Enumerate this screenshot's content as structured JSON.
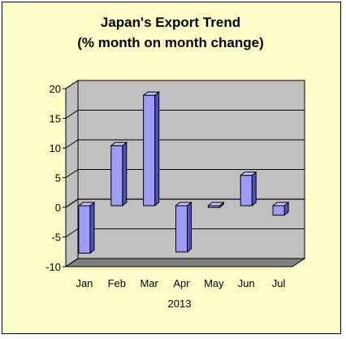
{
  "chart_data": {
    "type": "bar",
    "title": "Japan's Export Trend",
    "subtitle": "(% month on month change)",
    "xlabel": "2013",
    "ylabel": "",
    "categories": [
      "Jan",
      "Feb",
      "Mar",
      "Apr",
      "May",
      "Jun",
      "Jul"
    ],
    "values": [
      -8.0,
      10.1,
      18.6,
      -7.8,
      -0.3,
      5.1,
      -1.6
    ],
    "ylim": [
      -10,
      20
    ],
    "yticks": [
      "-10",
      "-5",
      "0",
      "5",
      "10",
      "15",
      "20"
    ],
    "grid": true,
    "legend": "none",
    "style": "3d",
    "colors": {
      "bar_front": "#9d9df7",
      "bar_side": "#5050c0",
      "bar_top": "#c7c7ff",
      "wall": "#c0c0c0",
      "floor": "#808080",
      "background": "#fdfdc8"
    }
  }
}
